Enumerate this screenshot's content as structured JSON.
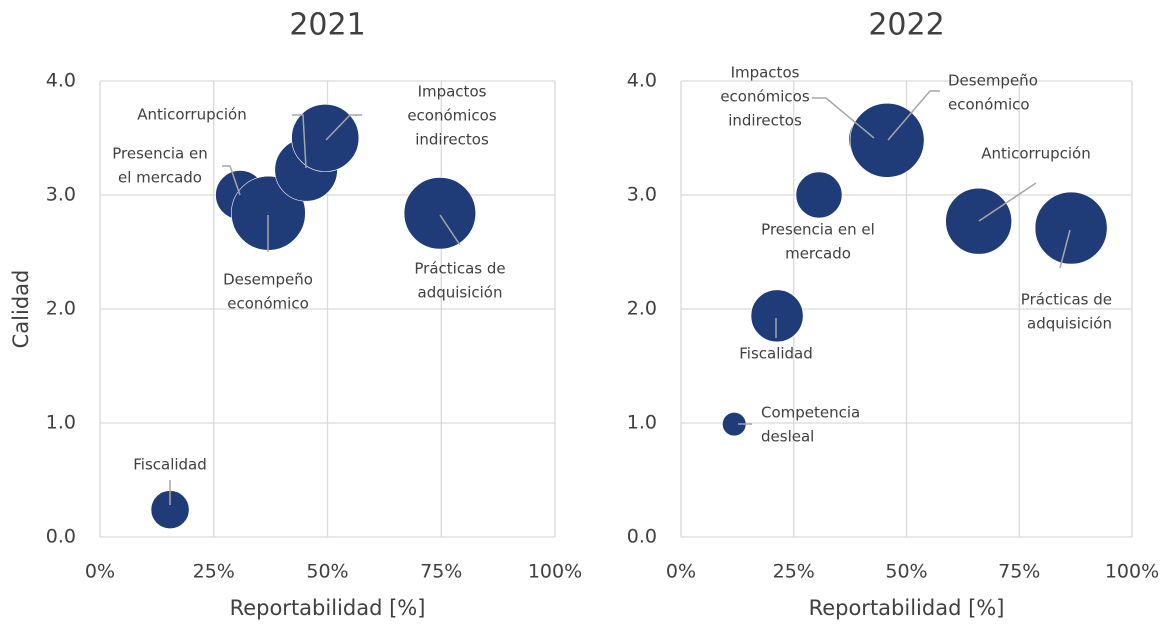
{
  "chart_data": [
    {
      "type": "bubble",
      "title": "2021",
      "xlabel": "Reportabilidad [%]",
      "ylabel": "Calidad",
      "color": "#1f3b78",
      "grid": true,
      "xlim": [
        0,
        100
      ],
      "ylim": [
        0,
        4
      ],
      "xticks": [
        {
          "value": 0,
          "label": "0%"
        },
        {
          "value": 25,
          "label": "25%"
        },
        {
          "value": 50,
          "label": "50%"
        },
        {
          "value": 75,
          "label": "75%"
        },
        {
          "value": 100,
          "label": "100%"
        }
      ],
      "yticks": [
        {
          "value": 0,
          "label": "0.0"
        },
        {
          "value": 1,
          "label": "1.0"
        },
        {
          "value": 2,
          "label": "2.0"
        },
        {
          "value": 3,
          "label": "3.0"
        },
        {
          "value": 4,
          "label": "4.0"
        }
      ],
      "labels": [
        [
          "Fiscalidad"
        ],
        [
          "Presencia en",
          "el mercado"
        ],
        [
          "Desempeño",
          "económico"
        ],
        [
          "Anticorrupción"
        ],
        [
          "Impactos",
          "económicos",
          "indirectos"
        ],
        [
          "Prácticas de",
          "adquisición"
        ]
      ],
      "x": [
        15.4,
        30.8,
        37,
        45.3,
        49.5,
        74.7
      ],
      "y": [
        0.24,
        3.0,
        2.84,
        3.22,
        3.5,
        2.84
      ],
      "sizes": [
        29,
        48,
        109,
        78,
        90,
        102
      ]
    },
    {
      "type": "bubble",
      "title": "2022",
      "xlabel": "Reportabilidad [%]",
      "color": "#1f3b78",
      "grid": true,
      "xlim": [
        0,
        100
      ],
      "ylim": [
        0,
        4
      ],
      "xticks": [
        {
          "value": 0,
          "label": "0%"
        },
        {
          "value": 25,
          "label": "25%"
        },
        {
          "value": 50,
          "label": "50%"
        },
        {
          "value": 75,
          "label": "75%"
        },
        {
          "value": 100,
          "label": "100%"
        }
      ],
      "yticks": [
        {
          "value": 0,
          "label": "0.0"
        },
        {
          "value": 1,
          "label": "1.0"
        },
        {
          "value": 2,
          "label": "2.0"
        },
        {
          "value": 3,
          "label": "3.0"
        },
        {
          "value": 4,
          "label": "4.0"
        }
      ],
      "labels": [
        [
          "Competencia",
          "desleal"
        ],
        [
          "Fiscalidad"
        ],
        [
          "Presencia en el",
          "mercado"
        ],
        [
          "Impactos",
          "económicos",
          "indirectos"
        ],
        [
          "Desempeño",
          "económico"
        ],
        [
          "Anticorrupción"
        ],
        [
          "Prácticas de",
          "adquisición"
        ]
      ],
      "x": [
        11.8,
        21.3,
        30.6,
        43.2,
        45.7,
        66,
        86.5
      ],
      "y": [
        0.99,
        1.94,
        3.0,
        3.49,
        3.48,
        2.77,
        2.71
      ],
      "sizes": [
        14,
        68,
        53,
        73,
        137,
        109,
        130
      ]
    }
  ]
}
